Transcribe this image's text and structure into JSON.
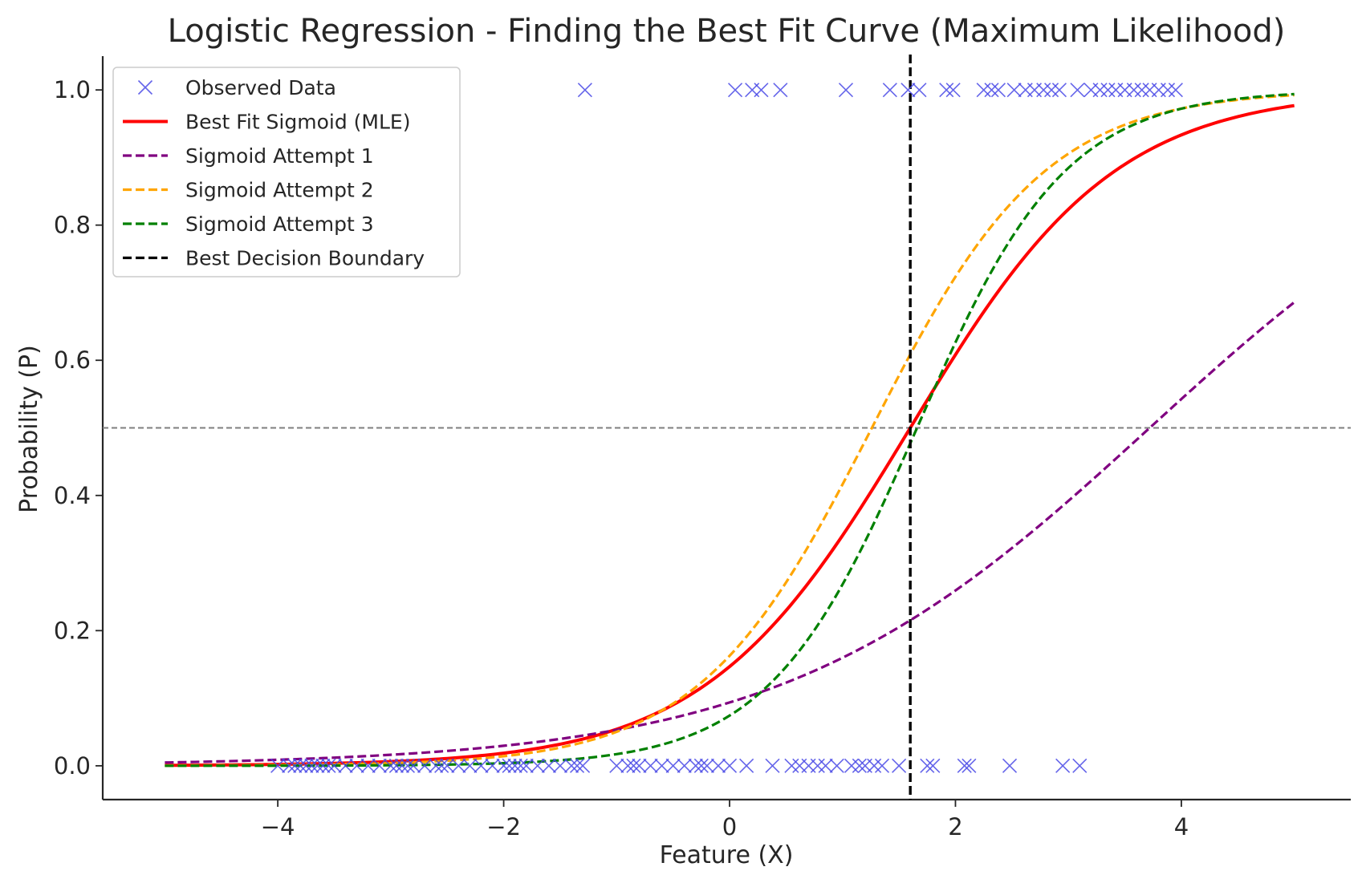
{
  "chart_data": {
    "type": "line",
    "title": "Logistic Regression - Finding the Best Fit Curve (Maximum Likelihood)",
    "xlabel": "Feature (X)",
    "ylabel": "Probability (P)",
    "xlim": [
      -5.55,
      5.5
    ],
    "ylim": [
      -0.05,
      1.05
    ],
    "x_ticks": [
      -4,
      -2,
      0,
      2,
      4
    ],
    "x_tick_labels": [
      "−4",
      "−2",
      "0",
      "2",
      "4"
    ],
    "y_ticks": [
      0.0,
      0.2,
      0.4,
      0.6,
      0.8,
      1.0
    ],
    "y_tick_labels": [
      "0.0",
      "0.2",
      "0.4",
      "0.6",
      "0.8",
      "1.0"
    ],
    "grid": false,
    "legend_placement": "top-left",
    "reference_line_y": 0.5,
    "decision_boundary_x": 1.6,
    "x_range": [
      -5,
      5
    ],
    "observed_data": {
      "name": "Observed Data",
      "color": "#4a4ae6",
      "marker": "x",
      "x_class_0": [
        -4.0,
        -3.9,
        -3.85,
        -3.8,
        -3.75,
        -3.7,
        -3.65,
        -3.6,
        -3.55,
        -3.5,
        -3.4,
        -3.3,
        -3.2,
        -3.1,
        -3.0,
        -2.95,
        -2.9,
        -2.85,
        -2.8,
        -2.7,
        -2.6,
        -2.55,
        -2.5,
        -2.4,
        -2.3,
        -2.2,
        -2.1,
        -2.0,
        -1.95,
        -1.9,
        -1.85,
        -1.8,
        -1.7,
        -1.6,
        -1.5,
        -1.4,
        -1.35,
        -1.3,
        -1.0,
        -0.9,
        -0.85,
        -0.8,
        -0.7,
        -0.6,
        -0.5,
        -0.4,
        -0.3,
        -0.25,
        -0.2,
        -0.1,
        0.0,
        0.15,
        0.38,
        0.55,
        0.62,
        0.7,
        0.78,
        0.85,
        0.95,
        1.08,
        1.15,
        1.2,
        1.28,
        1.35,
        1.5,
        1.75,
        1.8,
        2.08,
        2.12,
        2.48,
        2.95,
        3.1
      ],
      "x_class_1": [
        -1.28,
        0.05,
        0.2,
        0.28,
        0.45,
        1.03,
        1.42,
        1.58,
        1.68,
        1.92,
        1.98,
        2.25,
        2.32,
        2.38,
        2.52,
        2.62,
        2.7,
        2.78,
        2.85,
        2.92,
        3.08,
        3.2,
        3.28,
        3.35,
        3.42,
        3.5,
        3.58,
        3.65,
        3.72,
        3.8,
        3.88,
        3.95
      ]
    },
    "series": [
      {
        "name": "Best Fit Sigmoid (MLE)",
        "k": 1.1,
        "x0": 1.6,
        "color": "#ff0000",
        "style": "solid"
      },
      {
        "name": "Sigmoid Attempt 1",
        "k": 0.61,
        "x0": 3.72,
        "color": "#800080",
        "style": "dashed"
      },
      {
        "name": "Sigmoid Attempt 2",
        "k": 1.3,
        "x0": 1.26,
        "color": "#ffa500",
        "style": "dashed"
      },
      {
        "name": "Sigmoid Attempt 3",
        "k": 1.52,
        "x0": 1.66,
        "color": "#008000",
        "style": "dashed"
      }
    ],
    "legend": [
      {
        "label": "Observed Data",
        "kind": "marker",
        "color": "#4a4ae6"
      },
      {
        "label": "Best Fit Sigmoid (MLE)",
        "kind": "solid",
        "color": "#ff0000"
      },
      {
        "label": "Sigmoid Attempt 1",
        "kind": "dashed",
        "color": "#800080"
      },
      {
        "label": "Sigmoid Attempt 2",
        "kind": "dashed",
        "color": "#ffa500"
      },
      {
        "label": "Sigmoid Attempt 3",
        "kind": "dashed",
        "color": "#008000"
      },
      {
        "label": "Best Decision Boundary",
        "kind": "dashed",
        "color": "#000000"
      }
    ]
  }
}
